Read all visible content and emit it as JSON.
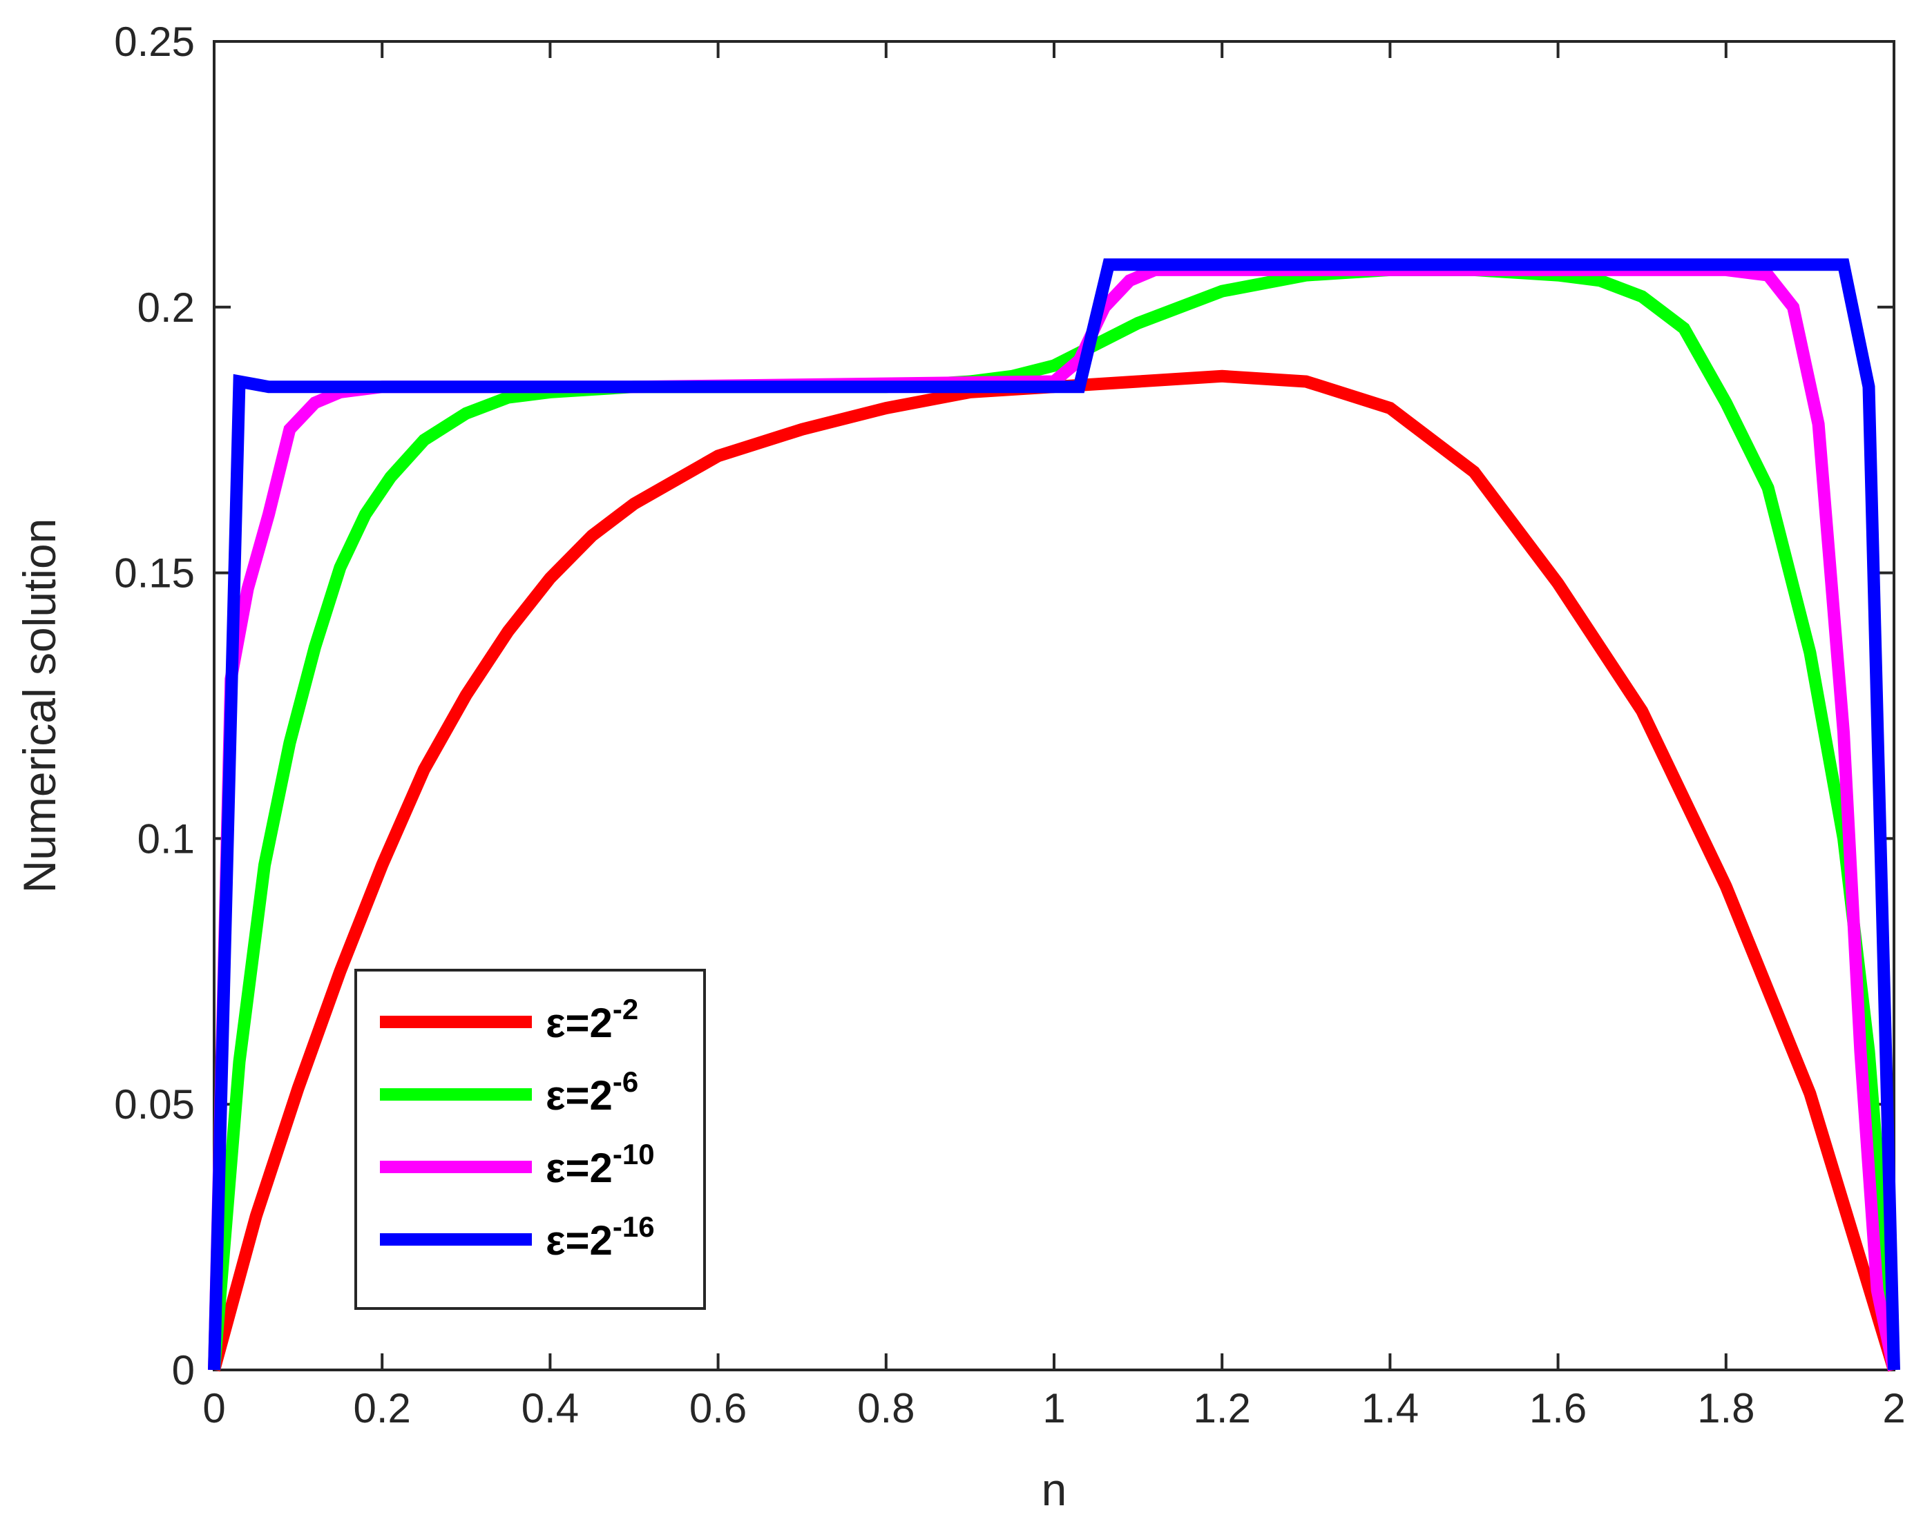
{
  "chart_data": {
    "type": "line",
    "title": "",
    "xlabel": "n",
    "ylabel": "Numerical solution",
    "xlim": [
      0,
      2
    ],
    "ylim": [
      0,
      0.25
    ],
    "xticks": [
      "0",
      "0.2",
      "0.4",
      "0.6",
      "0.8",
      "1",
      "1.2",
      "1.4",
      "1.6",
      "1.8",
      "2"
    ],
    "yticks": [
      "0",
      "0.05",
      "0.1",
      "0.15",
      "0.2",
      "0.25"
    ],
    "grid": false,
    "legend_position": "bottom-left",
    "series": [
      {
        "name_prefix": "ε=2",
        "name_exponent": "-2",
        "color": "#ff0000",
        "x": [
          0,
          0.05,
          0.1,
          0.15,
          0.2,
          0.25,
          0.3,
          0.35,
          0.4,
          0.45,
          0.5,
          0.6,
          0.7,
          0.8,
          0.9,
          1.0,
          1.1,
          1.2,
          1.3,
          1.4,
          1.5,
          1.6,
          1.7,
          1.8,
          1.9,
          2.0
        ],
        "y": [
          0,
          0.029,
          0.053,
          0.075,
          0.095,
          0.113,
          0.127,
          0.139,
          0.149,
          0.157,
          0.163,
          0.172,
          0.177,
          0.181,
          0.184,
          0.185,
          0.186,
          0.187,
          0.186,
          0.181,
          0.169,
          0.148,
          0.124,
          0.091,
          0.052,
          0
        ]
      },
      {
        "name_prefix": "ε=2",
        "name_exponent": "-6",
        "color": "#00ff00",
        "x": [
          0,
          0.03,
          0.06,
          0.09,
          0.12,
          0.15,
          0.18,
          0.21,
          0.25,
          0.3,
          0.35,
          0.4,
          0.5,
          0.6,
          0.7,
          0.8,
          0.9,
          0.95,
          1.0,
          1.05,
          1.1,
          1.15,
          1.2,
          1.3,
          1.4,
          1.5,
          1.6,
          1.65,
          1.7,
          1.75,
          1.8,
          1.85,
          1.9,
          1.94,
          1.97,
          2.0
        ],
        "y": [
          0,
          0.058,
          0.095,
          0.118,
          0.136,
          0.151,
          0.161,
          0.168,
          0.175,
          0.18,
          0.183,
          0.184,
          0.185,
          0.185,
          0.185,
          0.185,
          0.186,
          0.187,
          0.189,
          0.193,
          0.197,
          0.2,
          0.203,
          0.206,
          0.207,
          0.207,
          0.206,
          0.205,
          0.202,
          0.196,
          0.182,
          0.166,
          0.135,
          0.1,
          0.06,
          0
        ]
      },
      {
        "name_prefix": "ε=2",
        "name_exponent": "-10",
        "color": "#ff00ff",
        "x": [
          0,
          0.02,
          0.04,
          0.065,
          0.09,
          0.12,
          0.15,
          0.2,
          0.5,
          1.0,
          1.03,
          1.06,
          1.09,
          1.12,
          1.2,
          1.5,
          1.8,
          1.85,
          1.88,
          1.91,
          1.94,
          1.96,
          1.98,
          2.0
        ],
        "y": [
          0,
          0.13,
          0.147,
          0.161,
          0.177,
          0.182,
          0.184,
          0.185,
          0.185,
          0.186,
          0.19,
          0.2,
          0.205,
          0.207,
          0.207,
          0.207,
          0.207,
          0.206,
          0.2,
          0.178,
          0.12,
          0.06,
          0.015,
          0
        ]
      },
      {
        "name_prefix": "ε=2",
        "name_exponent": "-16",
        "color": "#0000ff",
        "x": [
          0,
          0.03,
          0.065,
          1.03,
          1.065,
          1.94,
          1.97,
          2.0
        ],
        "y": [
          0,
          0.186,
          0.185,
          0.185,
          0.208,
          0.208,
          0.185,
          0
        ]
      }
    ]
  }
}
